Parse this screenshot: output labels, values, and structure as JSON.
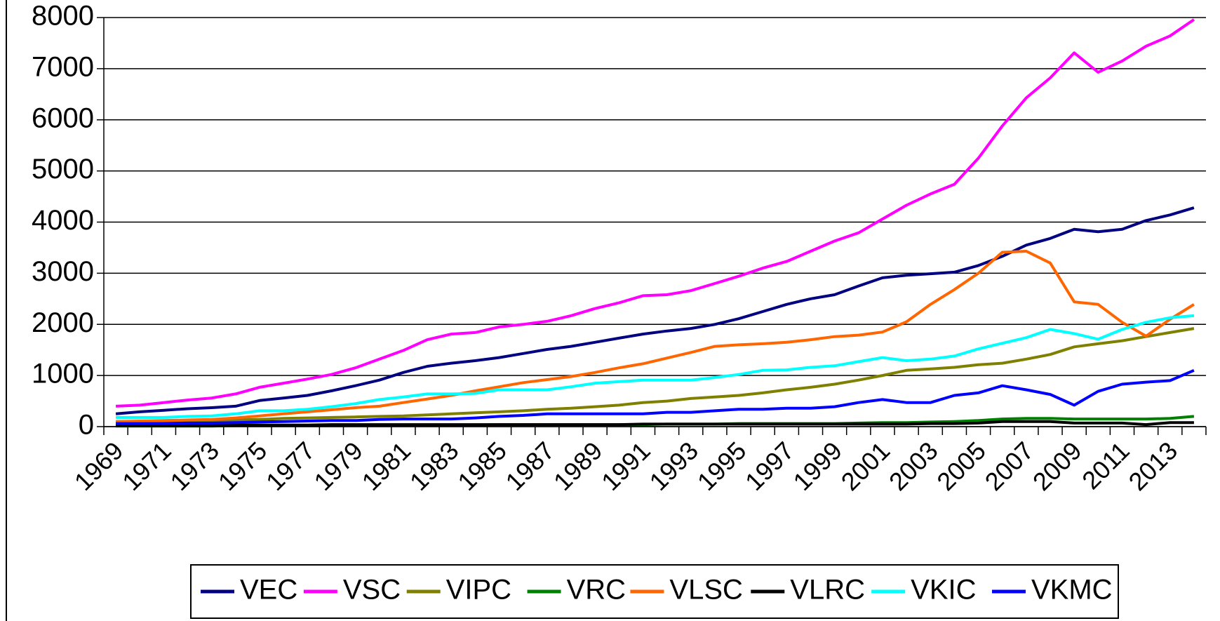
{
  "chart_data": {
    "type": "line",
    "categories": [
      "1969",
      null,
      "1971",
      null,
      "1973",
      null,
      "1975",
      null,
      "1977",
      null,
      "1979",
      null,
      "1981",
      null,
      "1983",
      null,
      "1985",
      null,
      "1987",
      null,
      "1989",
      null,
      "1991",
      null,
      "1993",
      null,
      "1995",
      null,
      "1997",
      null,
      "1999",
      null,
      "2001",
      null,
      "2003",
      null,
      "2005",
      null,
      "2007",
      null,
      "2009",
      null,
      "2011",
      null,
      "2013",
      null
    ],
    "ylim": [
      0,
      8000
    ],
    "yticks": [
      0,
      1000,
      2000,
      3000,
      4000,
      5000,
      6000,
      7000,
      8000
    ],
    "grid": true,
    "legend": "bottom",
    "series": [
      {
        "name": "VEC",
        "color": "#000080",
        "values": [
          250,
          290,
          320,
          350,
          370,
          400,
          510,
          560,
          610,
          700,
          800,
          910,
          1060,
          1180,
          1240,
          1290,
          1350,
          1430,
          1510,
          1570,
          1650,
          1730,
          1810,
          1870,
          1920,
          2000,
          2110,
          2250,
          2390,
          2500,
          2580,
          2750,
          2910,
          2960,
          2990,
          3020,
          3150,
          3330,
          3550,
          3680,
          3860,
          3810,
          3860,
          4030,
          4140,
          4280
        ]
      },
      {
        "name": "VSC",
        "color": "#ff00ff",
        "values": [
          400,
          420,
          470,
          520,
          560,
          640,
          770,
          850,
          930,
          1020,
          1150,
          1320,
          1490,
          1700,
          1810,
          1840,
          1950,
          2000,
          2060,
          2170,
          2310,
          2420,
          2560,
          2580,
          2660,
          2800,
          2940,
          3100,
          3230,
          3430,
          3630,
          3790,
          4060,
          4330,
          4550,
          4740,
          5250,
          5880,
          6430,
          6820,
          7310,
          6930,
          7150,
          7440,
          7640,
          7960
        ]
      },
      {
        "name": "VIPC",
        "color": "#808000",
        "values": [
          100,
          100,
          100,
          110,
          120,
          130,
          140,
          160,
          170,
          180,
          190,
          200,
          210,
          230,
          250,
          270,
          290,
          310,
          340,
          360,
          390,
          420,
          470,
          500,
          550,
          580,
          610,
          660,
          720,
          770,
          830,
          910,
          1000,
          1100,
          1130,
          1160,
          1210,
          1240,
          1320,
          1410,
          1560,
          1620,
          1680,
          1760,
          1840,
          1920
        ]
      },
      {
        "name": "VRC",
        "color": "#008000",
        "values": [
          10,
          10,
          10,
          10,
          10,
          20,
          20,
          20,
          20,
          20,
          20,
          30,
          30,
          30,
          30,
          30,
          40,
          40,
          40,
          40,
          40,
          40,
          40,
          50,
          50,
          50,
          60,
          60,
          60,
          60,
          60,
          70,
          80,
          80,
          90,
          100,
          120,
          150,
          160,
          160,
          150,
          150,
          150,
          150,
          160,
          200
        ]
      },
      {
        "name": "VLSC",
        "color": "#ff6600",
        "values": [
          100,
          110,
          120,
          130,
          140,
          170,
          210,
          250,
          290,
          330,
          370,
          400,
          470,
          540,
          610,
          700,
          780,
          860,
          920,
          980,
          1060,
          1150,
          1230,
          1340,
          1450,
          1570,
          1600,
          1620,
          1650,
          1700,
          1760,
          1790,
          1850,
          2050,
          2390,
          2680,
          3000,
          3410,
          3430,
          3200,
          2440,
          2390,
          2040,
          1770,
          2100,
          2390
        ]
      },
      {
        "name": "VLRC",
        "color": "#000000",
        "values": [
          20,
          20,
          20,
          20,
          30,
          30,
          30,
          30,
          30,
          40,
          40,
          40,
          40,
          40,
          40,
          40,
          40,
          40,
          40,
          40,
          40,
          40,
          50,
          50,
          50,
          50,
          50,
          50,
          50,
          50,
          50,
          50,
          50,
          50,
          60,
          60,
          70,
          100,
          100,
          100,
          70,
          70,
          70,
          40,
          80,
          80
        ]
      },
      {
        "name": "VKIC",
        "color": "#00ffff",
        "values": [
          180,
          180,
          180,
          200,
          210,
          250,
          310,
          310,
          340,
          390,
          450,
          530,
          580,
          640,
          640,
          650,
          720,
          720,
          720,
          780,
          850,
          880,
          910,
          910,
          910,
          960,
          1020,
          1100,
          1110,
          1160,
          1190,
          1270,
          1350,
          1290,
          1320,
          1380,
          1520,
          1630,
          1740,
          1900,
          1820,
          1710,
          1900,
          2040,
          2130,
          2170
        ]
      },
      {
        "name": "VKMC",
        "color": "#0000ff",
        "values": [
          60,
          60,
          60,
          70,
          70,
          80,
          90,
          100,
          110,
          120,
          120,
          140,
          150,
          150,
          150,
          170,
          200,
          220,
          250,
          250,
          250,
          250,
          250,
          280,
          280,
          310,
          340,
          340,
          360,
          360,
          390,
          470,
          530,
          470,
          470,
          610,
          660,
          800,
          720,
          630,
          420,
          690,
          830,
          870,
          900,
          1100
        ]
      }
    ]
  }
}
